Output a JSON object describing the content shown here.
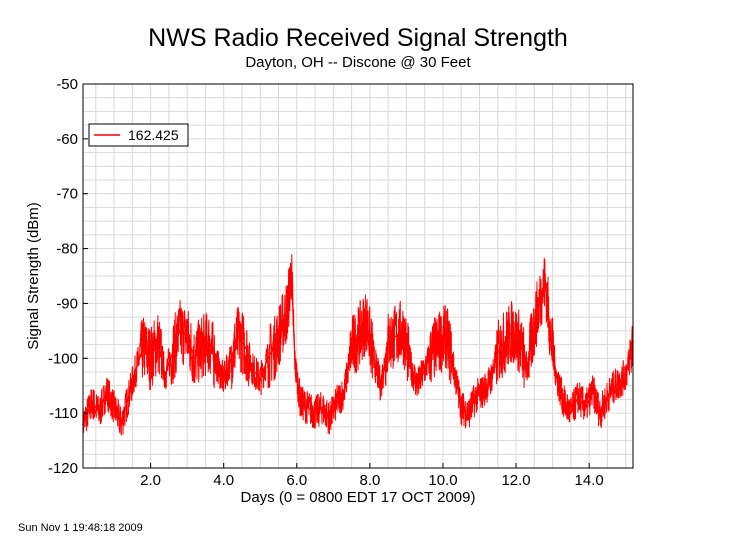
{
  "chart_data": {
    "type": "line",
    "title": "NWS Radio Received Signal Strength",
    "subtitle": "Dayton, OH -- Discone @ 30 Feet",
    "xlabel": "Days (0 = 0800 EDT 17 OCT 2009)",
    "ylabel": "Signal Strength (dBm)",
    "xlim": [
      0.15,
      15.2
    ],
    "ylim": [
      -120,
      -50
    ],
    "x_ticks": [
      "2.0",
      "4.0",
      "6.0",
      "8.0",
      "10.0",
      "12.0",
      "14.0"
    ],
    "y_ticks": [
      "-50",
      "-60",
      "-70",
      "-80",
      "-90",
      "-100",
      "-110",
      "-120"
    ],
    "grid": true,
    "legend": "top-left",
    "series_color": "#ff0000",
    "series": [
      {
        "name": "162.425",
        "x": [
          0.15,
          0.4,
          0.6,
          0.8,
          1.0,
          1.2,
          1.4,
          1.6,
          1.8,
          2.0,
          2.2,
          2.4,
          2.6,
          2.8,
          3.0,
          3.2,
          3.4,
          3.6,
          3.8,
          4.0,
          4.2,
          4.4,
          4.6,
          4.8,
          5.0,
          5.2,
          5.4,
          5.6,
          5.75,
          5.85,
          5.95,
          6.1,
          6.3,
          6.5,
          6.7,
          6.9,
          7.1,
          7.3,
          7.5,
          7.7,
          7.9,
          8.1,
          8.3,
          8.5,
          8.7,
          8.9,
          9.1,
          9.3,
          9.5,
          9.7,
          9.9,
          10.1,
          10.3,
          10.5,
          10.7,
          10.9,
          11.1,
          11.3,
          11.5,
          11.7,
          11.9,
          12.1,
          12.3,
          12.5,
          12.7,
          12.8,
          12.95,
          13.1,
          13.3,
          13.5,
          13.7,
          13.9,
          14.1,
          14.3,
          14.5,
          14.7,
          14.9,
          15.05,
          15.2
        ],
        "values": [
          -112,
          -108,
          -110,
          -106,
          -109,
          -112,
          -107,
          -102,
          -98,
          -100,
          -97,
          -103,
          -99,
          -95,
          -96,
          -100,
          -98,
          -97,
          -101,
          -104,
          -100,
          -96,
          -98,
          -102,
          -104,
          -100,
          -98,
          -94,
          -91,
          -84,
          -101,
          -108,
          -109,
          -110,
          -109,
          -111,
          -108,
          -106,
          -98,
          -96,
          -93,
          -100,
          -105,
          -97,
          -96,
          -95,
          -101,
          -105,
          -102,
          -99,
          -97,
          -96,
          -102,
          -109,
          -110,
          -107,
          -106,
          -104,
          -99,
          -97,
          -95,
          -97,
          -102,
          -94,
          -88,
          -86,
          -96,
          -103,
          -108,
          -110,
          -107,
          -109,
          -106,
          -110,
          -107,
          -105,
          -104,
          -102,
          -97
        ]
      }
    ]
  },
  "footer": {
    "timestamp": "Sun Nov  1 19:48:18 2009"
  }
}
